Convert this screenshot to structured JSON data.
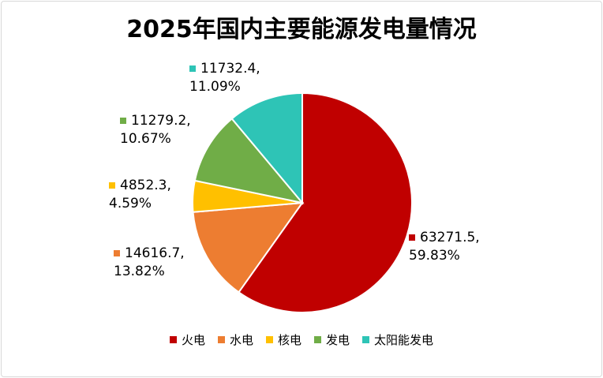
{
  "chart_data": {
    "type": "pie",
    "title": "2025年国内主要能源发电量情况",
    "categories": [
      "火电",
      "水电",
      "核电",
      "发电",
      "太阳能发电"
    ],
    "values": [
      63271.5,
      14616.7,
      4852.3,
      11279.2,
      11732.4
    ],
    "percent_labels": [
      "59.83%",
      "13.82%",
      "4.59%",
      "10.67%",
      "11.09%"
    ],
    "value_labels": [
      "63271.5,",
      "14616.7,",
      "4852.3,",
      "11279.2,",
      "11732.4,"
    ],
    "colors": [
      "#C00000",
      "#ED7D31",
      "#FFC000",
      "#70AD47",
      "#2EC4B6"
    ],
    "legend_position": "bottom",
    "start_angle": "12 o'clock",
    "direction": "clockwise"
  }
}
